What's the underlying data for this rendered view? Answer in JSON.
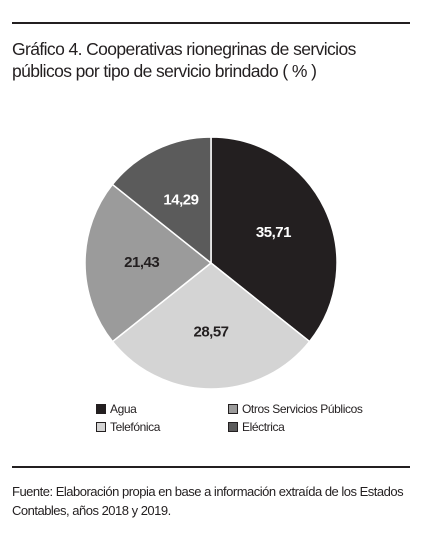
{
  "chart_data": {
    "type": "pie",
    "title": "Gráfico 4. Cooperativas rionegrinas de servicios públicos por tipo de servicio brindado ( % )",
    "categories": [
      "Agua",
      "Telefónica",
      "Otros Servicios Públicos",
      "Eléctrica"
    ],
    "values": [
      35.71,
      28.57,
      21.43,
      14.29
    ],
    "value_labels": [
      "35,71",
      "28,57",
      "21,43",
      "14,29"
    ],
    "colors": [
      "#231f20",
      "#d4d4d4",
      "#9b9b9b",
      "#5b5b5b"
    ],
    "source": "Fuente: Elaboración propia en base a información extraída de los Estados Contables, años 2018 y 2019."
  }
}
